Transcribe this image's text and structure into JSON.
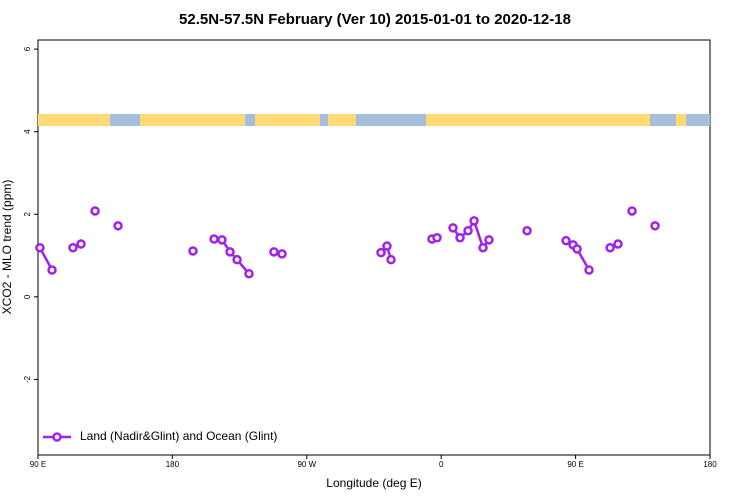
{
  "chart_data": {
    "type": "line",
    "title": "52.5N-57.5N February (Ver 10)   2015-01-01 to 2020-12-18",
    "x_label": "Longitude (deg E)",
    "y_label": "XCO2 - MLO trend (ppm)",
    "xlim": [
      90,
      540
    ],
    "ylim": [
      -3.83,
      6.22
    ],
    "xticks": [
      {
        "value": 90,
        "label": "90 E"
      },
      {
        "value": 180,
        "label": "180"
      },
      {
        "value": 270,
        "label": "90 W"
      },
      {
        "value": 360,
        "label": "0"
      },
      {
        "value": 450,
        "label": "90 E"
      },
      {
        "value": 540,
        "label": "180"
      }
    ],
    "yticks": [
      6,
      4,
      2,
      0,
      -2
    ],
    "legend_position": "bottom-left",
    "series": [
      {
        "name": "Land (Nadir&Glint) and Ocean (Glint)",
        "color": "#a020f0",
        "x": [
          91.3,
          99.4,
          null,
          113.4,
          null,
          118.8,
          null,
          128.2,
          null,
          143.6,
          null,
          193.8,
          null,
          207.9,
          213.2,
          218.6,
          223.3,
          231.3,
          null,
          248.0,
          253.4,
          null,
          319.7,
          323.7,
          326.4,
          null,
          353.8,
          357.2,
          null,
          367.9,
          372.6,
          378.0,
          382.0,
          388.0,
          392.0,
          null,
          417.5,
          null,
          443.6,
          448.3,
          451.0,
          459.0,
          null,
          473.1,
          null,
          478.4,
          null,
          487.8,
          null,
          503.2
        ],
        "values": [
          1.19,
          0.65,
          null,
          1.19,
          null,
          1.28,
          null,
          2.08,
          null,
          1.72,
          null,
          1.11,
          null,
          1.4,
          1.38,
          1.09,
          0.9,
          0.56,
          null,
          1.09,
          1.04,
          null,
          1.07,
          1.23,
          0.9,
          null,
          1.4,
          1.43,
          null,
          1.67,
          1.43,
          1.6,
          1.84,
          1.19,
          1.38,
          null,
          1.6,
          null,
          1.36,
          1.26,
          1.16,
          0.65,
          null,
          1.19,
          null,
          1.28,
          null,
          2.08,
          null,
          1.72
        ]
      }
    ]
  }
}
